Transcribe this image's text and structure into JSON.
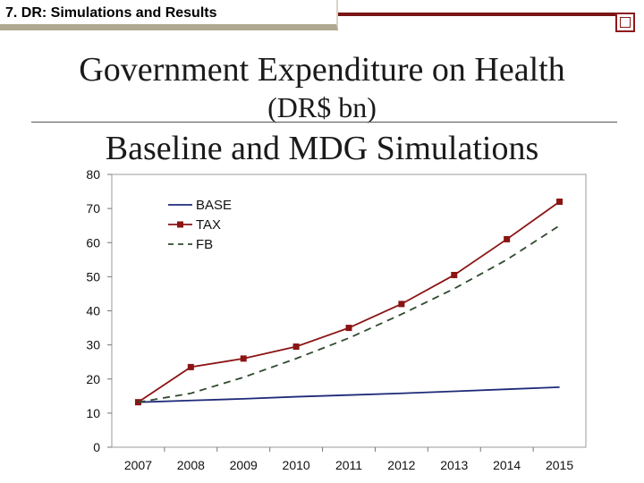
{
  "header": {
    "title": "7. DR: Simulations and Results"
  },
  "slide": {
    "title_line1": "Government Expenditure on Health",
    "title_line2": "(DR$ bn)",
    "title_line3": "Baseline and MDG Simulations"
  },
  "colors": {
    "base": "#1f2a78",
    "tax": "#8b1414",
    "fb": "#2f4a2f",
    "accent": "#7a1515"
  },
  "chart_data": {
    "type": "line",
    "title": "",
    "xlabel": "",
    "ylabel": "",
    "x": [
      "2007",
      "2008",
      "2009",
      "2010",
      "2011",
      "2012",
      "2013",
      "2014",
      "2015"
    ],
    "ylim": [
      0,
      80
    ],
    "yticks": [
      "0",
      "10",
      "20",
      "30",
      "40",
      "50",
      "60",
      "70",
      "80"
    ],
    "grid": false,
    "legend": "top-left",
    "series": [
      {
        "name": "BASE",
        "values": [
          13.2,
          13.7,
          14.2,
          14.8,
          15.3,
          15.8,
          16.4,
          17.0,
          17.6
        ],
        "style": "solid",
        "marker": "none"
      },
      {
        "name": "TAX",
        "values": [
          13.2,
          23.5,
          26.0,
          29.5,
          35.0,
          42.0,
          50.5,
          61.0,
          72.0
        ],
        "style": "solid",
        "marker": "square"
      },
      {
        "name": "FB",
        "values": [
          13.2,
          15.8,
          20.5,
          26.0,
          32.0,
          39.0,
          46.5,
          55.0,
          65.0
        ],
        "style": "dashed",
        "marker": "none"
      }
    ]
  }
}
